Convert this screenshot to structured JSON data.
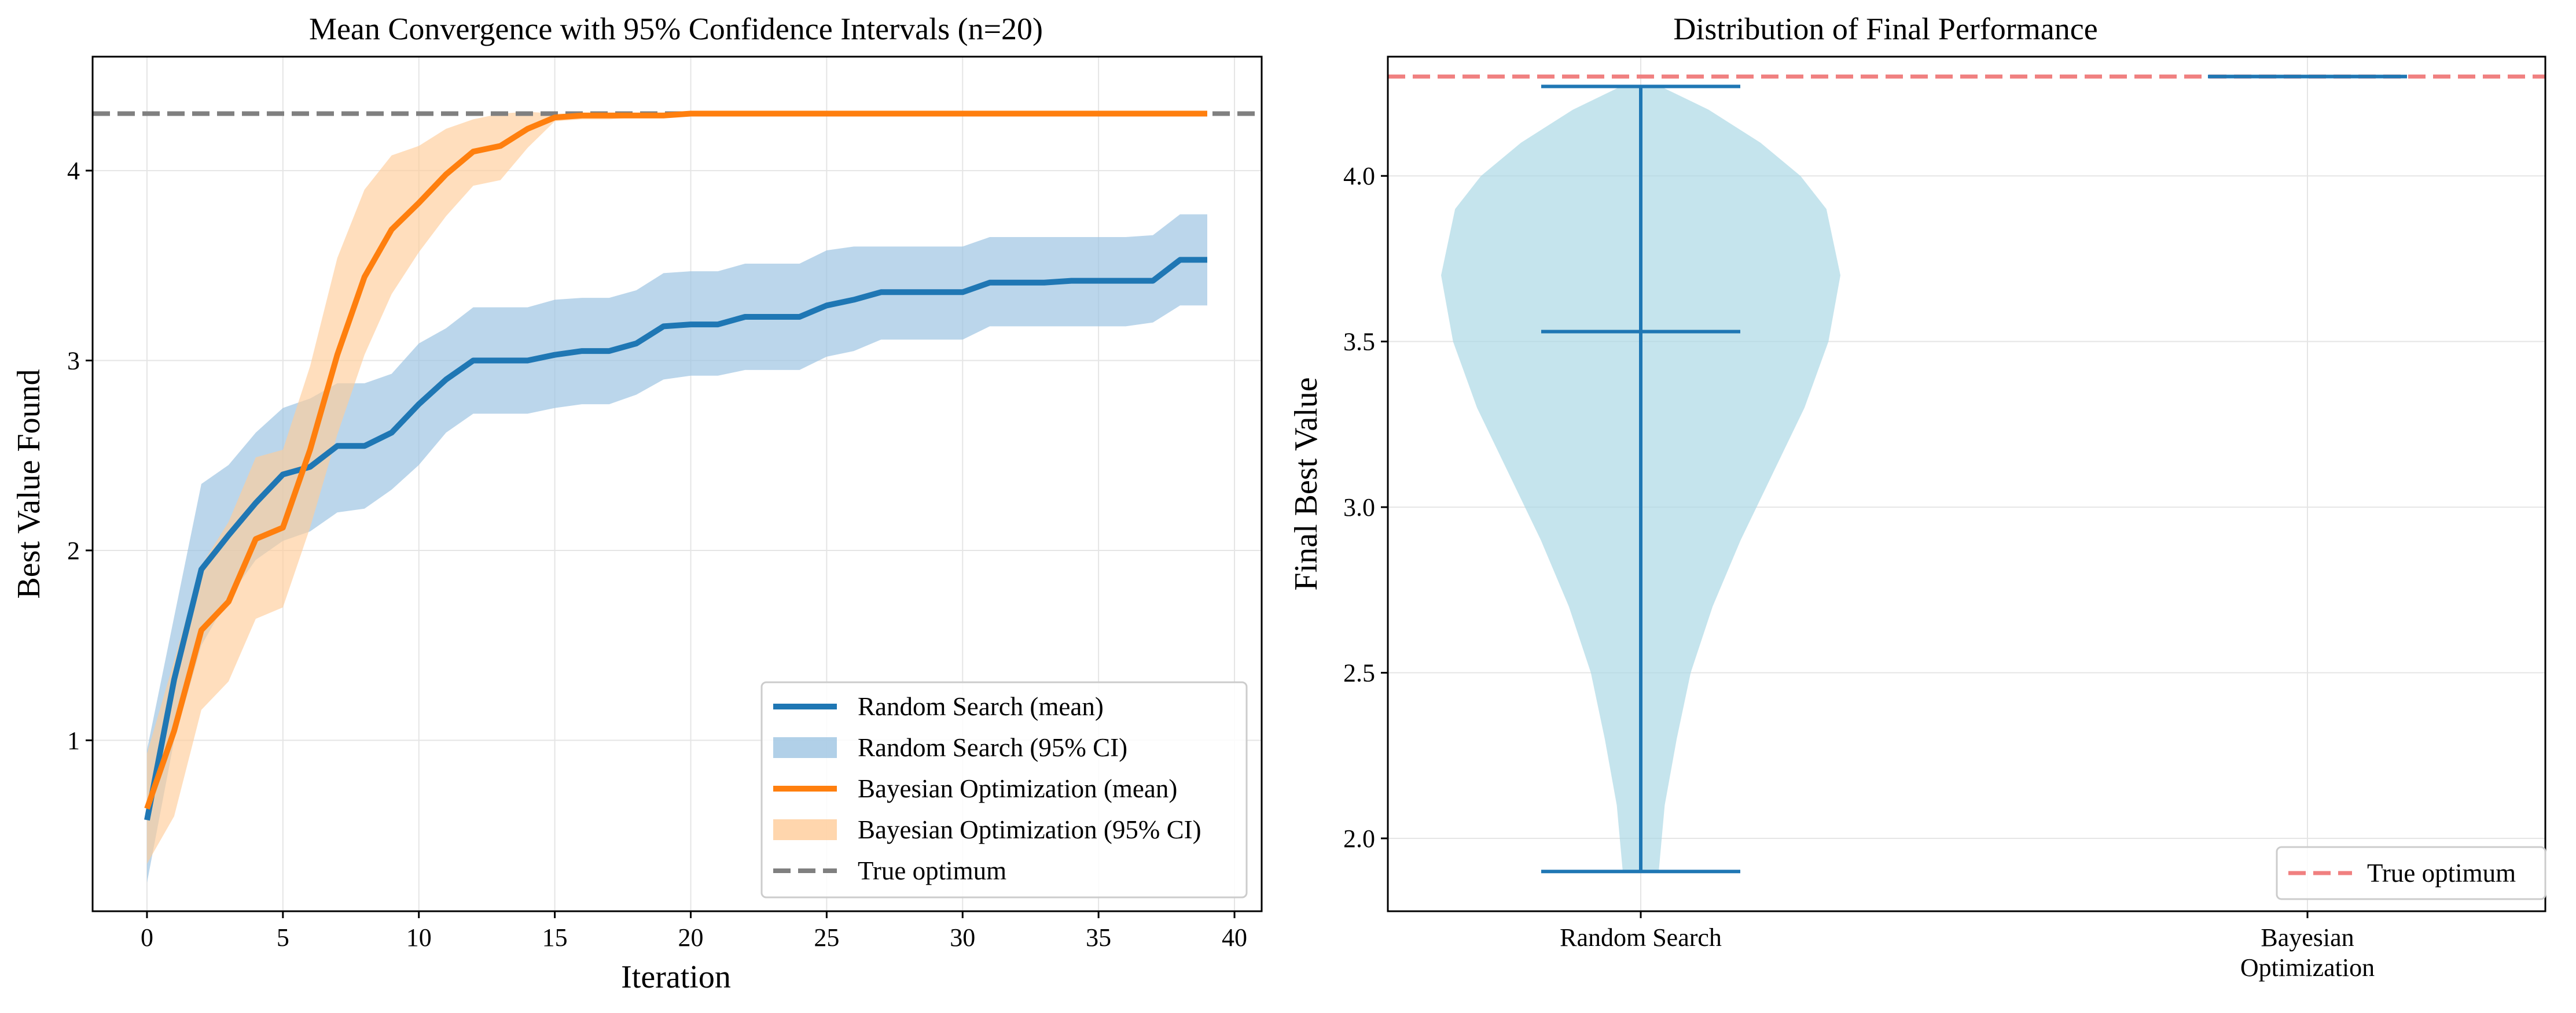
{
  "chart_data": [
    {
      "type": "line",
      "title": "Mean Convergence with 95% Confidence Intervals (n=20)",
      "xlabel": "Iteration",
      "ylabel": "Best Value Found",
      "xlim": [
        -2,
        41
      ],
      "ylim": [
        0.1,
        4.6
      ],
      "xticks": [
        0,
        5,
        10,
        15,
        20,
        25,
        30,
        35,
        40
      ],
      "yticks": [
        1,
        2,
        3,
        4
      ],
      "grid": true,
      "legend_position": "lower-right",
      "x": [
        0,
        1,
        2,
        3,
        4,
        5,
        6,
        7,
        8,
        9,
        10,
        11,
        12,
        13,
        14,
        15,
        16,
        17,
        18,
        19,
        20,
        21,
        22,
        23,
        24,
        25,
        26,
        27,
        28,
        29,
        30,
        31,
        32,
        33,
        34,
        35,
        36,
        37,
        38,
        39
      ],
      "series": [
        {
          "name": "Random Search (mean)",
          "color": "#1f77b4",
          "ci_label": "Random Search (95% CI)",
          "ci_color": "#9ec4e2",
          "values": [
            0.58,
            1.32,
            1.9,
            2.08,
            2.25,
            2.4,
            2.44,
            2.55,
            2.55,
            2.62,
            2.77,
            2.9,
            3.0,
            3.0,
            3.0,
            3.03,
            3.05,
            3.05,
            3.09,
            3.18,
            3.19,
            3.19,
            3.23,
            3.23,
            3.23,
            3.29,
            3.32,
            3.36,
            3.36,
            3.36,
            3.36,
            3.41,
            3.41,
            3.41,
            3.42,
            3.42,
            3.42,
            3.42,
            3.53,
            3.53
          ],
          "lower": [
            0.25,
            1.0,
            1.5,
            1.75,
            1.95,
            2.05,
            2.1,
            2.2,
            2.22,
            2.32,
            2.45,
            2.62,
            2.72,
            2.72,
            2.72,
            2.75,
            2.77,
            2.77,
            2.82,
            2.9,
            2.92,
            2.92,
            2.95,
            2.95,
            2.95,
            3.02,
            3.05,
            3.11,
            3.11,
            3.11,
            3.11,
            3.18,
            3.18,
            3.18,
            3.18,
            3.18,
            3.18,
            3.2,
            3.29,
            3.29
          ],
          "upper": [
            0.95,
            1.65,
            2.35,
            2.45,
            2.62,
            2.75,
            2.8,
            2.88,
            2.88,
            2.93,
            3.09,
            3.17,
            3.28,
            3.28,
            3.28,
            3.32,
            3.33,
            3.33,
            3.37,
            3.46,
            3.47,
            3.47,
            3.51,
            3.51,
            3.51,
            3.58,
            3.6,
            3.6,
            3.6,
            3.6,
            3.6,
            3.65,
            3.65,
            3.65,
            3.65,
            3.65,
            3.65,
            3.66,
            3.77,
            3.77
          ]
        },
        {
          "name": "Bayesian Optimization (mean)",
          "color": "#ff7f0e",
          "ci_label": "Bayesian Optimization (95% CI)",
          "ci_color": "#ffcc99",
          "values": [
            0.64,
            1.05,
            1.58,
            1.73,
            2.06,
            2.12,
            2.53,
            3.03,
            3.44,
            3.69,
            3.83,
            3.98,
            4.1,
            4.13,
            4.22,
            4.28,
            4.29,
            4.29,
            4.29,
            4.29,
            4.3,
            4.3,
            4.3,
            4.3,
            4.3,
            4.3,
            4.3,
            4.3,
            4.3,
            4.3,
            4.3,
            4.3,
            4.3,
            4.3,
            4.3,
            4.3,
            4.3,
            4.3,
            4.3,
            4.3
          ],
          "lower": [
            0.35,
            0.6,
            1.16,
            1.31,
            1.64,
            1.7,
            2.12,
            2.61,
            3.03,
            3.35,
            3.57,
            3.76,
            3.92,
            3.95,
            4.12,
            4.26,
            4.27,
            4.27,
            4.28,
            4.28,
            4.29,
            4.29,
            4.29,
            4.29,
            4.29,
            4.29,
            4.29,
            4.29,
            4.29,
            4.29,
            4.29,
            4.29,
            4.29,
            4.29,
            4.29,
            4.29,
            4.29,
            4.29,
            4.29,
            4.29
          ],
          "upper": [
            0.93,
            1.42,
            1.92,
            2.15,
            2.49,
            2.53,
            2.97,
            3.54,
            3.9,
            4.08,
            4.13,
            4.22,
            4.27,
            4.3,
            4.31,
            4.3,
            4.3,
            4.3,
            4.3,
            4.3,
            4.3,
            4.3,
            4.3,
            4.3,
            4.3,
            4.3,
            4.3,
            4.3,
            4.3,
            4.3,
            4.3,
            4.3,
            4.3,
            4.3,
            4.3,
            4.3,
            4.3,
            4.3,
            4.3,
            4.3
          ]
        }
      ],
      "reference_line": {
        "name": "True optimum",
        "y": 4.3,
        "color": "#808080",
        "style": "dashed"
      }
    },
    {
      "type": "violin",
      "title": "Distribution of Final Performance",
      "xlabel": "",
      "ylabel": "Final Best Value",
      "ylim": [
        1.78,
        4.36
      ],
      "yticks": [
        2.0,
        2.5,
        3.0,
        3.5,
        4.0
      ],
      "ytick_labels": [
        "2.0",
        "2.5",
        "3.0",
        "3.5",
        "4.0"
      ],
      "categories": [
        "Random Search",
        "Bayesian Optimization"
      ],
      "category_label_lines": [
        [
          "Random Search"
        ],
        [
          "Bayesian",
          "Optimization"
        ]
      ],
      "grid": true,
      "legend_position": "lower-right",
      "violin_color": "#add8e6",
      "stat_color": "#1f77b4",
      "violins": [
        {
          "category": "Random Search",
          "min": 1.9,
          "median": 3.53,
          "max": 4.27,
          "density_profile": [
            [
              1.9,
              0.09
            ],
            [
              2.1,
              0.12
            ],
            [
              2.3,
              0.18
            ],
            [
              2.5,
              0.25
            ],
            [
              2.7,
              0.36
            ],
            [
              2.9,
              0.5
            ],
            [
              3.1,
              0.66
            ],
            [
              3.3,
              0.82
            ],
            [
              3.5,
              0.94
            ],
            [
              3.7,
              1.0
            ],
            [
              3.9,
              0.93
            ],
            [
              4.0,
              0.8
            ],
            [
              4.1,
              0.6
            ],
            [
              4.2,
              0.34
            ],
            [
              4.27,
              0.1
            ]
          ]
        },
        {
          "category": "Bayesian Optimization",
          "min": 4.3,
          "median": 4.3,
          "max": 4.3,
          "density_profile": []
        }
      ],
      "reference_line": {
        "name": "True optimum",
        "y": 4.3,
        "color": "#f08080",
        "style": "dashed"
      }
    }
  ]
}
